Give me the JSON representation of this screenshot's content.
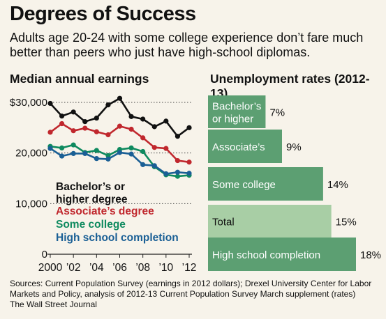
{
  "header": {
    "title": "Degrees of Success",
    "subtitle": "Adults age 20-24 with some college experience don’t fare much better than peers who just have high-school diplomas."
  },
  "footer": {
    "source": "Sources: Current Population Survey (earnings in 2012 dollars); Drexel University Center for Labor Markets and Policy, analysis of 2012-13 Current Population Survey March supplement (rates)",
    "credit": "The Wall Street Journal"
  },
  "chart_data": [
    {
      "type": "line",
      "title": "Median annual earnings",
      "x": [
        2000,
        2001,
        2002,
        2003,
        2004,
        2005,
        2006,
        2007,
        2008,
        2009,
        2010,
        2011,
        2012
      ],
      "x_tick_labels": [
        "2000",
        "’02",
        "’04",
        "’06",
        "’08",
        "’10",
        "’12"
      ],
      "x_tick_values": [
        2000,
        2002,
        2004,
        2006,
        2008,
        2010,
        2012
      ],
      "y_tick_labels": [
        "$30,000",
        "20,000",
        "10,000",
        "0"
      ],
      "y_tick_values": [
        30000,
        20000,
        10000,
        0
      ],
      "ylim": [
        0,
        30000
      ],
      "grid": "dotted horizontal",
      "legend": "inside-bottom-left",
      "series": [
        {
          "name": "Bachelor’s or higher degree",
          "color": "#111111",
          "values": [
            29800,
            27300,
            28100,
            26200,
            26900,
            29500,
            30800,
            27200,
            26700,
            25200,
            26300,
            23300,
            25000
          ]
        },
        {
          "name": "Associate’s degree",
          "color": "#c0272d",
          "values": [
            24100,
            25800,
            24400,
            24900,
            24200,
            23600,
            25300,
            24700,
            23000,
            21100,
            20900,
            18500,
            18200
          ]
        },
        {
          "name": "Some college",
          "color": "#0e8a5f",
          "values": [
            21300,
            21000,
            21600,
            20100,
            20500,
            19500,
            20700,
            21000,
            20300,
            17300,
            15700,
            15400,
            15600
          ]
        },
        {
          "name": "High school completion",
          "color": "#1a5f95",
          "values": [
            20900,
            19400,
            19900,
            19900,
            18900,
            18800,
            20100,
            19800,
            17700,
            17500,
            15900,
            16200,
            16000
          ]
        }
      ]
    },
    {
      "type": "bar",
      "orientation": "horizontal",
      "title": "Unemployment rates (2012-13)",
      "categories": [
        "Bachelor’s or higher",
        "Associate’s",
        "Some college",
        "Total",
        "High school completion"
      ],
      "category_lines": [
        [
          "Bachelor’s",
          "or higher"
        ],
        [
          "Associate’s"
        ],
        [
          "Some college"
        ],
        [
          "Total"
        ],
        [
          "High school completion"
        ]
      ],
      "values": [
        7,
        9,
        14,
        15,
        18
      ],
      "value_labels": [
        "7%",
        "9%",
        "14%",
        "15%",
        "18%"
      ],
      "colors": [
        "#5c9f72",
        "#5c9f72",
        "#5c9f72",
        "#a8cea5",
        "#5c9f72"
      ],
      "xlim": [
        0,
        18
      ]
    }
  ]
}
